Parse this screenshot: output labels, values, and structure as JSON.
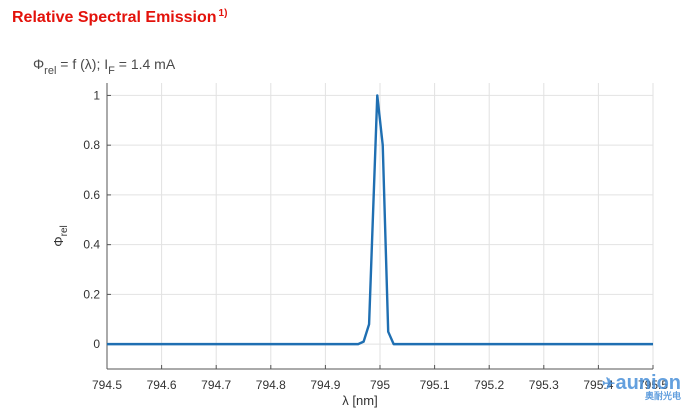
{
  "header": {
    "title": "Relative Spectral Emission",
    "title_footnote": "1)",
    "condition_prefix": "Φ",
    "condition_sub1": "rel",
    "condition_mid": " = f (λ); I",
    "condition_sub2": "F",
    "condition_suffix": " = 1.4 mA"
  },
  "colors": {
    "title": "#e3120b",
    "series": "#1f6fb2",
    "grid": "#e2e2e2",
    "axis": "#555555"
  },
  "watermark": {
    "brand": "aunion",
    "tagline": "奥耐光电",
    "logo_icon": "bird-logo-icon"
  },
  "chart_data": {
    "type": "line",
    "xlabel": "λ [nm]",
    "ylabel": "Φ",
    "ylabel_sub": "rel",
    "xlim": [
      794.5,
      795.5
    ],
    "ylim": [
      -0.1,
      1.05
    ],
    "grid": true,
    "x_ticks": [
      794.5,
      794.6,
      794.7,
      794.8,
      794.9,
      795.0,
      795.1,
      795.2,
      795.3,
      795.4,
      795.5
    ],
    "x_tick_labels": [
      "794.5",
      "794.6",
      "794.7",
      "794.8",
      "794.9",
      "795",
      "795.1",
      "795.2",
      "795.3",
      "795.4",
      "795.5"
    ],
    "y_ticks": [
      0,
      0.2,
      0.4,
      0.6,
      0.8,
      1.0
    ],
    "y_tick_labels": [
      "0",
      "0.2",
      "0.4",
      "0.6",
      "0.8",
      "1"
    ],
    "series": [
      {
        "x": [
          794.5,
          794.96,
          794.97,
          794.98,
          794.995,
          795.005,
          795.015,
          795.025,
          795.5
        ],
        "y": [
          0,
          0,
          0.01,
          0.08,
          1.0,
          0.8,
          0.05,
          0.0,
          0
        ]
      }
    ]
  }
}
